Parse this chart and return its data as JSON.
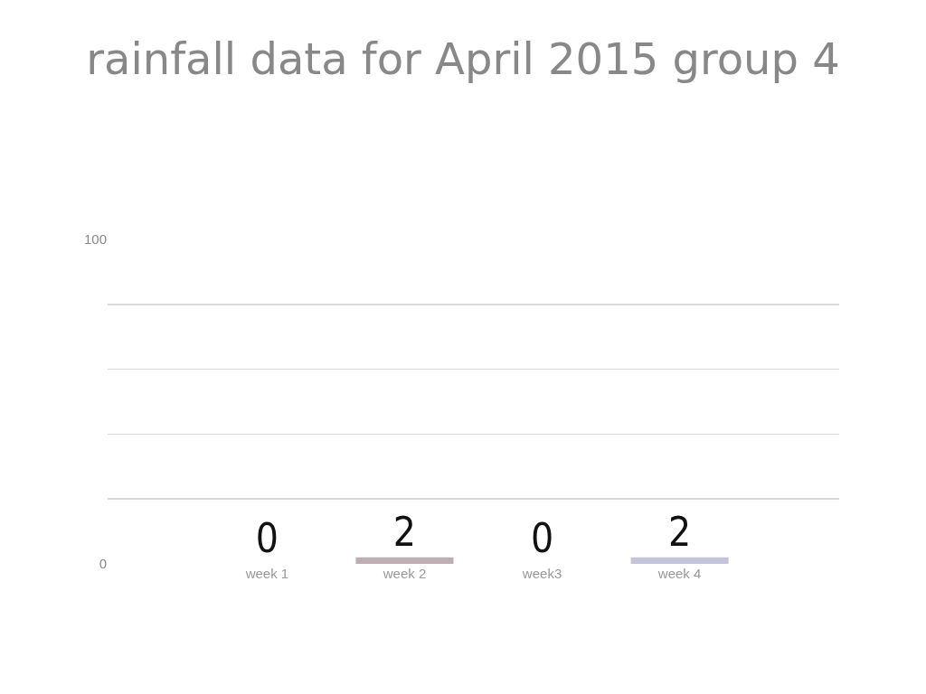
{
  "chart_data": {
    "type": "bar",
    "title": "rainfall data for April 2015 group 4",
    "categories": [
      "week 1",
      "week 2",
      "week3",
      "week 4"
    ],
    "values": [
      0,
      2,
      0,
      2
    ],
    "colors": [
      "#c9b8a8",
      "#bcaeb2",
      "#b8c8c0",
      "#c3c4d9"
    ],
    "data_labels": true,
    "ylim": [
      0,
      100
    ],
    "yticks": [
      0,
      {
        "value": 20,
        "label": null
      },
      {
        "value": 40,
        "label": null
      },
      {
        "value": 60,
        "label": null
      },
      {
        "value": 80,
        "label": null
      },
      100
    ],
    "grid": "y"
  }
}
